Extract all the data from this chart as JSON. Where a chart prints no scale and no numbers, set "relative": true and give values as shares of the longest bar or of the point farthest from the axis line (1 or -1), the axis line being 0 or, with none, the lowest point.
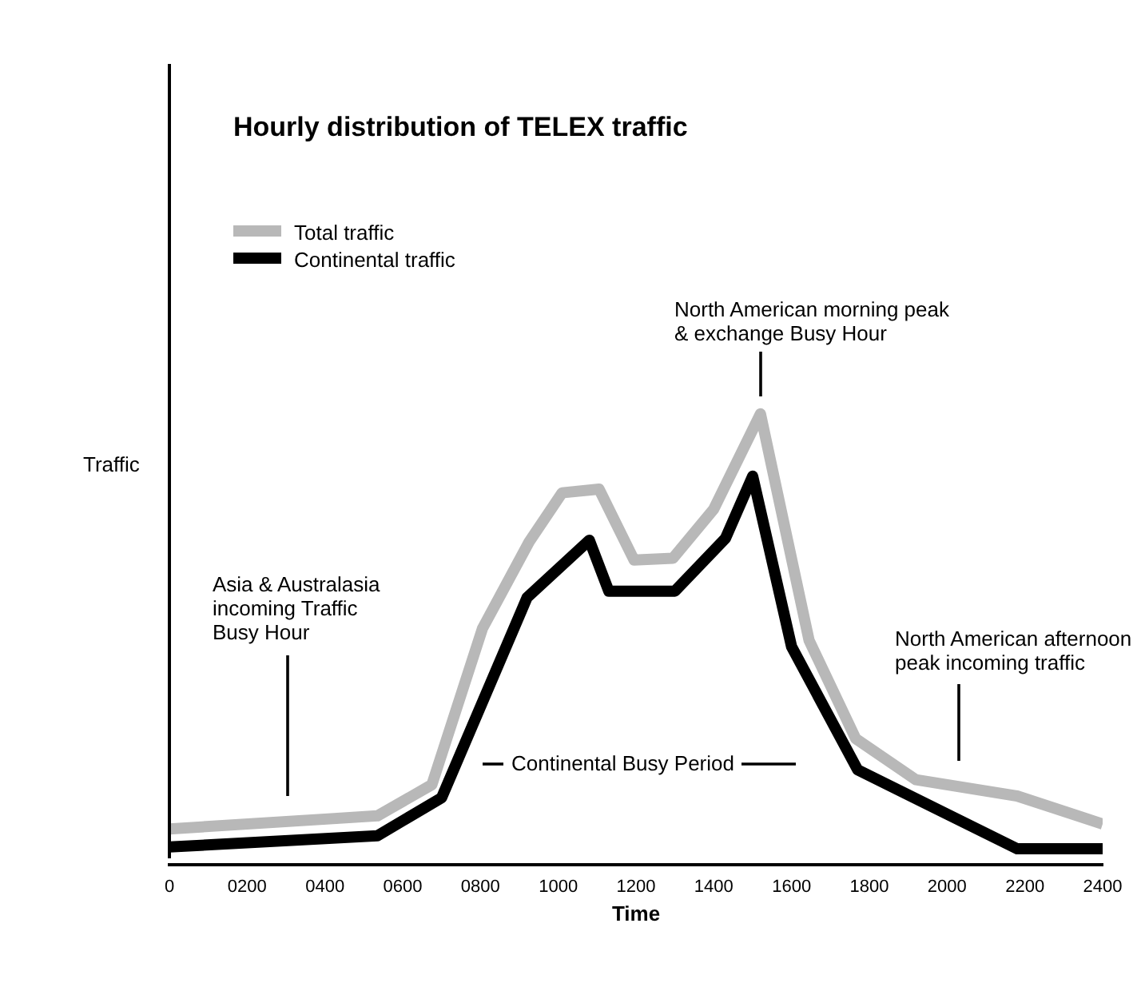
{
  "chart_data": {
    "type": "line",
    "title": "Hourly distribution of TELEX traffic",
    "xlabel": "Time",
    "ylabel": "Traffic",
    "relative": true,
    "legend": "top left",
    "marker": "none",
    "grid": false,
    "xlim": [
      0,
      2400
    ],
    "xticks": [
      0,
      {
        "value": 200,
        "label": "0200"
      },
      {
        "value": 400,
        "label": "0400"
      },
      {
        "value": 600,
        "label": "0600"
      },
      {
        "value": 800,
        "label": "0800"
      },
      1000,
      1200,
      1400,
      1600,
      1800,
      2000,
      2200,
      2400
    ],
    "series": [
      {
        "name": "Total traffic",
        "color": "#b8b8b8",
        "x": [
          0,
          535,
          675,
          805,
          925,
          1010,
          1105,
          1195,
          1295,
          1400,
          1520,
          1645,
          1765,
          1920,
          2180,
          2400
        ],
        "values": [
          0.08,
          0.109,
          0.178,
          0.524,
          0.716,
          0.825,
          0.833,
          0.676,
          0.68,
          0.789,
          1,
          0.498,
          0.28,
          0.189,
          0.153,
          0.091
        ]
      },
      {
        "name": "Continental traffic",
        "color": "#000000",
        "x": [
          0,
          535,
          700,
          920,
          1080,
          1130,
          1300,
          1430,
          1500,
          1600,
          1770,
          2180,
          2400
        ],
        "values": [
          0.04,
          0.065,
          0.149,
          0.593,
          0.72,
          0.607,
          0.607,
          0.724,
          0.862,
          0.484,
          0.211,
          0.036,
          0.036
        ]
      }
    ],
    "annotations": [
      "Asia & Australasia\nincoming Traffic\nBusy Hour",
      "North American morning peak\n& exchange Busy Hour",
      "North American afternoon\npeak incoming traffic",
      "Continental Busy Period"
    ]
  }
}
